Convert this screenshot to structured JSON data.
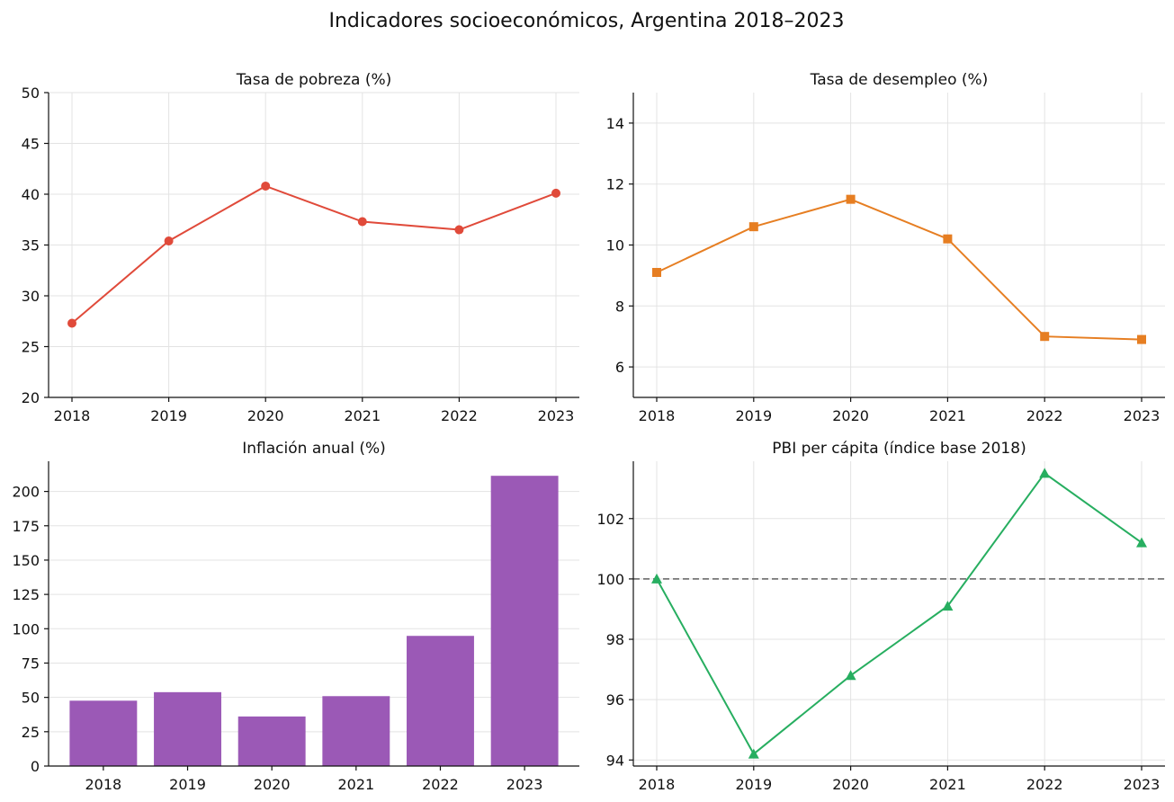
{
  "title": "Indicadores socioeconómicos, Argentina 2018–2023",
  "chart_data": [
    {
      "type": "line",
      "title": "Tasa de pobreza (%)",
      "categories": [
        "2018",
        "2019",
        "2020",
        "2021",
        "2022",
        "2023"
      ],
      "series": [
        {
          "values": [
            27.3,
            35.4,
            40.8,
            37.3,
            36.5,
            40.1
          ]
        }
      ],
      "marker": "circle",
      "color": "#e04a3a",
      "ylim": [
        20,
        50
      ],
      "yticks": [
        20,
        25,
        30,
        35,
        40,
        45,
        50
      ],
      "grid": true
    },
    {
      "type": "line",
      "title": "Tasa de desempleo (%)",
      "categories": [
        "2018",
        "2019",
        "2020",
        "2021",
        "2022",
        "2023"
      ],
      "series": [
        {
          "values": [
            9.1,
            10.6,
            11.5,
            10.2,
            7.0,
            6.9
          ]
        }
      ],
      "marker": "square",
      "color": "#e67e22",
      "ylim": [
        5,
        15
      ],
      "yticks": [
        6,
        8,
        10,
        12,
        14
      ],
      "grid": true
    },
    {
      "type": "bar",
      "title": "Inflación anual (%)",
      "categories": [
        "2018",
        "2019",
        "2020",
        "2021",
        "2022",
        "2023"
      ],
      "series": [
        {
          "values": [
            47.6,
            53.8,
            36.1,
            50.9,
            94.8,
            211.4
          ]
        }
      ],
      "color": "#9b59b6",
      "ylim": [
        0,
        222
      ],
      "yticks": [
        0,
        25,
        50,
        75,
        100,
        125,
        150,
        175,
        200
      ],
      "grid": true
    },
    {
      "type": "line",
      "title": "PBI per cápita (índice base 2018)",
      "categories": [
        "2018",
        "2019",
        "2020",
        "2021",
        "2022",
        "2023"
      ],
      "series": [
        {
          "values": [
            100.0,
            94.2,
            96.8,
            99.1,
            103.5,
            101.2
          ]
        }
      ],
      "marker": "triangle",
      "color": "#27ae60",
      "ylim": [
        93.8,
        103.9
      ],
      "yticks": [
        94,
        96,
        98,
        100,
        102
      ],
      "reference_line": {
        "y": 100,
        "style": "dashed",
        "color": "#777777"
      },
      "grid": true
    }
  ]
}
